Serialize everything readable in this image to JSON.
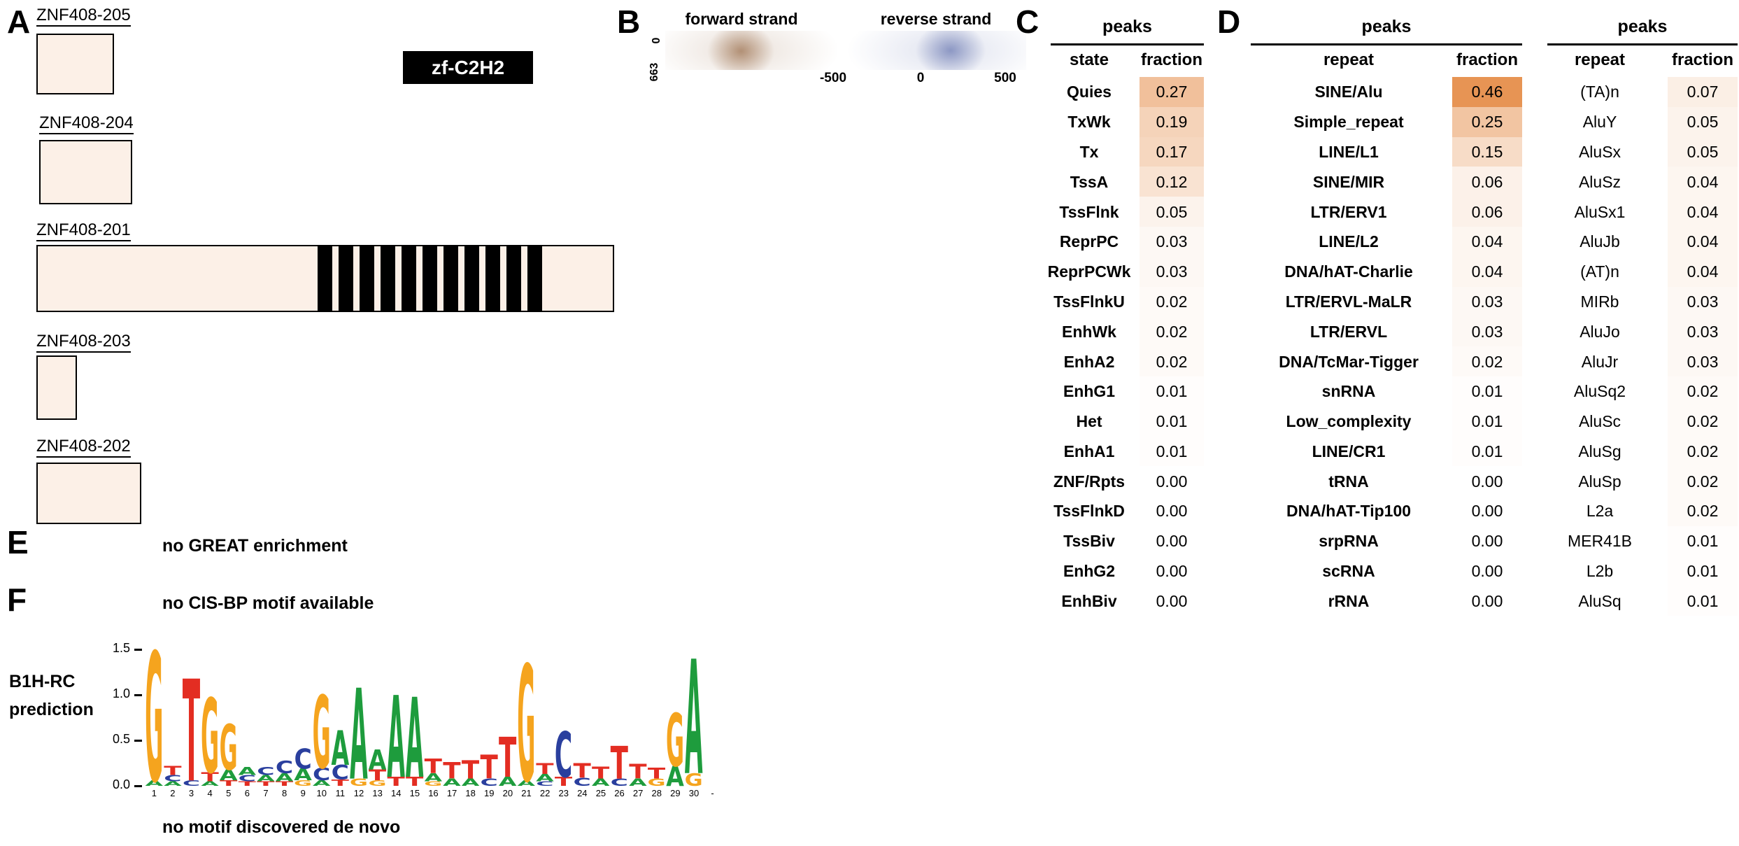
{
  "panelA": {
    "label": "A",
    "domain_badge": "zf-C2H2",
    "box_fill": "#fcf0e7",
    "isoforms": [
      {
        "name": "ZNF408-205"
      },
      {
        "name": "ZNF408-204"
      },
      {
        "name": "ZNF408-201"
      },
      {
        "name": "ZNF408-203"
      },
      {
        "name": "ZNF408-202"
      }
    ]
  },
  "panelB": {
    "label": "B",
    "forward_label": "forward strand",
    "reverse_label": "reverse strand",
    "forward_color": "#7a4012",
    "reverse_color": "#273c8f",
    "y_axis": {
      "top": "0",
      "bottom": "663"
    },
    "x_ticks": [
      "-500",
      "0",
      "500"
    ]
  },
  "panelC": {
    "label": "C",
    "title": "peaks",
    "columns": [
      "state",
      "fraction"
    ],
    "heat_rgb": [
      224,
      118,
      36
    ],
    "rows": [
      [
        "Quies",
        "0.27"
      ],
      [
        "TxWk",
        "0.19"
      ],
      [
        "Tx",
        "0.17"
      ],
      [
        "TssA",
        "0.12"
      ],
      [
        "TssFlnk",
        "0.05"
      ],
      [
        "ReprPC",
        "0.03"
      ],
      [
        "ReprPCWk",
        "0.03"
      ],
      [
        "TssFlnkU",
        "0.02"
      ],
      [
        "EnhWk",
        "0.02"
      ],
      [
        "EnhA2",
        "0.02"
      ],
      [
        "EnhG1",
        "0.01"
      ],
      [
        "Het",
        "0.01"
      ],
      [
        "EnhA1",
        "0.01"
      ],
      [
        "ZNF/Rpts",
        "0.00"
      ],
      [
        "TssFlnkD",
        "0.00"
      ],
      [
        "TssBiv",
        "0.00"
      ],
      [
        "EnhG2",
        "0.00"
      ],
      [
        "EnhBiv",
        "0.00"
      ]
    ]
  },
  "panelD": {
    "label": "D",
    "tables": [
      {
        "title": "peaks",
        "columns": [
          "repeat",
          "fraction"
        ],
        "bold_rows": true,
        "rows": [
          [
            "SINE/Alu",
            "0.46"
          ],
          [
            "Simple_repeat",
            "0.25"
          ],
          [
            "LINE/L1",
            "0.15"
          ],
          [
            "SINE/MIR",
            "0.06"
          ],
          [
            "LTR/ERV1",
            "0.06"
          ],
          [
            "LINE/L2",
            "0.04"
          ],
          [
            "DNA/hAT-Charlie",
            "0.04"
          ],
          [
            "LTR/ERVL-MaLR",
            "0.03"
          ],
          [
            "LTR/ERVL",
            "0.03"
          ],
          [
            "DNA/TcMar-Tigger",
            "0.02"
          ],
          [
            "snRNA",
            "0.01"
          ],
          [
            "Low_complexity",
            "0.01"
          ],
          [
            "LINE/CR1",
            "0.01"
          ],
          [
            "tRNA",
            "0.00"
          ],
          [
            "DNA/hAT-Tip100",
            "0.00"
          ],
          [
            "srpRNA",
            "0.00"
          ],
          [
            "scRNA",
            "0.00"
          ],
          [
            "rRNA",
            "0.00"
          ]
        ]
      },
      {
        "title": "peaks",
        "columns": [
          "repeat",
          "fraction"
        ],
        "bold_rows": false,
        "rows": [
          [
            "(TA)n",
            "0.07"
          ],
          [
            "AluY",
            "0.05"
          ],
          [
            "AluSx",
            "0.05"
          ],
          [
            "AluSz",
            "0.04"
          ],
          [
            "AluSx1",
            "0.04"
          ],
          [
            "AluJb",
            "0.04"
          ],
          [
            "(AT)n",
            "0.04"
          ],
          [
            "MIRb",
            "0.03"
          ],
          [
            "AluJo",
            "0.03"
          ],
          [
            "AluJr",
            "0.03"
          ],
          [
            "AluSq2",
            "0.02"
          ],
          [
            "AluSc",
            "0.02"
          ],
          [
            "AluSg",
            "0.02"
          ],
          [
            "AluSp",
            "0.02"
          ],
          [
            "L2a",
            "0.02"
          ],
          [
            "MER41B",
            "0.01"
          ],
          [
            "L2b",
            "0.01"
          ],
          [
            "AluSq",
            "0.01"
          ]
        ]
      }
    ]
  },
  "panelE": {
    "label": "E",
    "text": "no GREAT enrichment"
  },
  "panelF": {
    "label": "F",
    "no_cisbp": "no CIS-BP motif available",
    "prediction_line1": "B1H-RC",
    "prediction_line2": "prediction",
    "no_denovo": "no motif discovered de novo",
    "logo": {
      "yticks": [
        "1.5",
        "1.0",
        "0.5",
        "0.0"
      ],
      "xticks": [
        "1",
        "2",
        "3",
        "4",
        "5",
        "6",
        "7",
        "8",
        "9",
        "10",
        "11",
        "12",
        "13",
        "14",
        "15",
        "16",
        "17",
        "18",
        "19",
        "20",
        "21",
        "22",
        "23",
        "24",
        "25",
        "26",
        "27",
        "28",
        "29",
        "30",
        "-"
      ],
      "letter_colors": {
        "A": "#1e9c3d",
        "C": "#2a3f9e",
        "G": "#f5a41e",
        "T": "#e32d22"
      },
      "positions": [
        [
          [
            "G",
            1.42
          ],
          [
            "A",
            0.06
          ]
        ],
        [
          [
            "T",
            0.1
          ],
          [
            "C",
            0.07
          ],
          [
            "A",
            0.05
          ]
        ],
        [
          [
            "T",
            1.12
          ],
          [
            "C",
            0.06
          ]
        ],
        [
          [
            "G",
            0.82
          ],
          [
            "T",
            0.1
          ],
          [
            "A",
            0.05
          ]
        ],
        [
          [
            "G",
            0.5
          ],
          [
            "A",
            0.12
          ],
          [
            "T",
            0.06
          ]
        ],
        [
          [
            "A",
            0.09
          ],
          [
            "C",
            0.07
          ],
          [
            "T",
            0.05
          ]
        ],
        [
          [
            "C",
            0.09
          ],
          [
            "A",
            0.07
          ],
          [
            "T",
            0.05
          ]
        ],
        [
          [
            "C",
            0.14
          ],
          [
            "A",
            0.09
          ],
          [
            "T",
            0.05
          ]
        ],
        [
          [
            "C",
            0.22
          ],
          [
            "A",
            0.13
          ],
          [
            "G",
            0.06
          ]
        ],
        [
          [
            "G",
            0.8
          ],
          [
            "C",
            0.14
          ],
          [
            "A",
            0.06
          ]
        ],
        [
          [
            "A",
            0.38
          ],
          [
            "C",
            0.16
          ],
          [
            "T",
            0.07
          ]
        ],
        [
          [
            "A",
            1.0
          ],
          [
            "G",
            0.08
          ]
        ],
        [
          [
            "A",
            0.22
          ],
          [
            "T",
            0.12
          ],
          [
            "G",
            0.06
          ]
        ],
        [
          [
            "A",
            0.9
          ],
          [
            "T",
            0.1
          ]
        ],
        [
          [
            "A",
            0.88
          ],
          [
            "T",
            0.1
          ]
        ],
        [
          [
            "T",
            0.16
          ],
          [
            "A",
            0.09
          ],
          [
            "G",
            0.05
          ]
        ],
        [
          [
            "T",
            0.18
          ],
          [
            "A",
            0.08
          ]
        ],
        [
          [
            "T",
            0.2
          ],
          [
            "A",
            0.08
          ]
        ],
        [
          [
            "T",
            0.26
          ],
          [
            "C",
            0.08
          ]
        ],
        [
          [
            "T",
            0.44
          ],
          [
            "A",
            0.1
          ]
        ],
        [
          [
            "G",
            1.28
          ],
          [
            "A",
            0.06
          ]
        ],
        [
          [
            "T",
            0.12
          ],
          [
            "A",
            0.08
          ],
          [
            "C",
            0.05
          ]
        ],
        [
          [
            "C",
            0.5
          ],
          [
            "T",
            0.1
          ]
        ],
        [
          [
            "T",
            0.16
          ],
          [
            "C",
            0.09
          ]
        ],
        [
          [
            "T",
            0.13
          ],
          [
            "A",
            0.08
          ]
        ],
        [
          [
            "T",
            0.36
          ],
          [
            "C",
            0.08
          ]
        ],
        [
          [
            "T",
            0.16
          ],
          [
            "A",
            0.08
          ]
        ],
        [
          [
            "T",
            0.12
          ],
          [
            "G",
            0.08
          ]
        ],
        [
          [
            "G",
            0.58
          ],
          [
            "A",
            0.22
          ]
        ],
        [
          [
            "A",
            1.26
          ],
          [
            "G",
            0.14
          ]
        ],
        []
      ]
    }
  }
}
